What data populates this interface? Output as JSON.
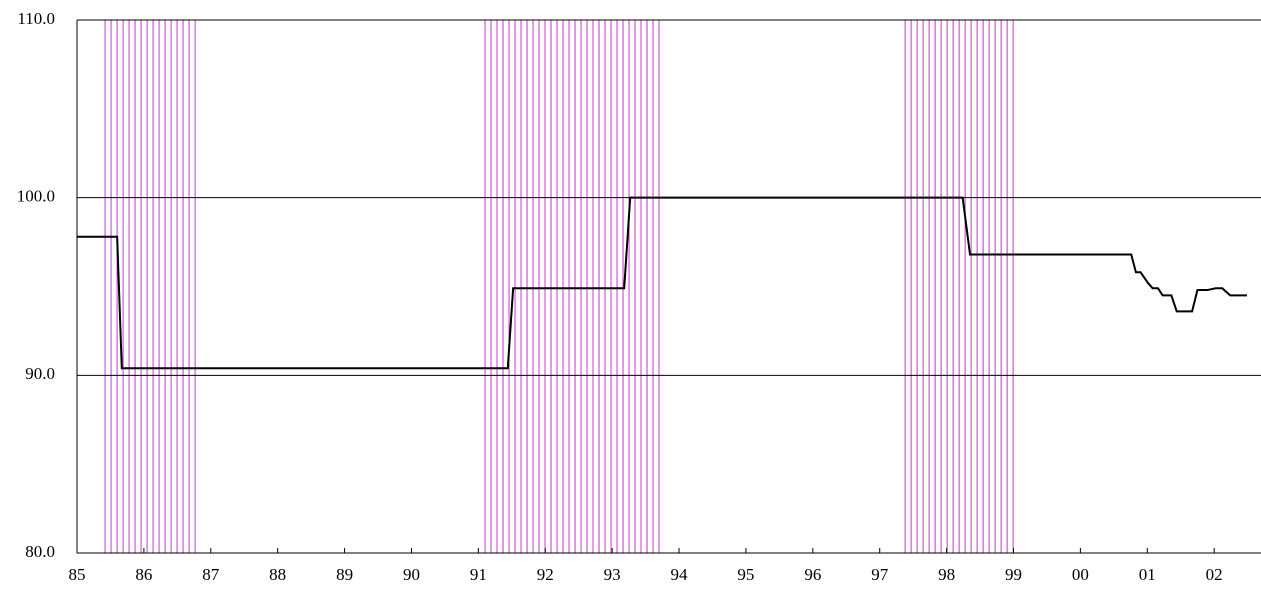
{
  "chart_data": {
    "type": "line",
    "x": [
      1985.0,
      1985.6,
      1985.67,
      1991.44,
      1991.52,
      1993.18,
      1993.27,
      1998.24,
      1998.35,
      2000.76,
      2000.83,
      2000.9,
      2001.01,
      2001.08,
      2001.16,
      2001.23,
      2001.36,
      2001.44,
      2001.67,
      2001.75,
      2001.9,
      2002.02,
      2002.12,
      2002.24,
      2002.49
    ],
    "series": [
      {
        "color": "#000000",
        "values": [
          97.8,
          97.8,
          90.4,
          90.4,
          94.9,
          94.9,
          100.0,
          100.0,
          96.8,
          96.8,
          95.8,
          95.8,
          95.2,
          94.9,
          94.9,
          94.5,
          94.5,
          93.6,
          93.6,
          94.8,
          94.8,
          94.9,
          94.9,
          94.5,
          94.5
        ]
      }
    ],
    "bands": [
      [
        1985.42,
        1986.84
      ],
      [
        1991.1,
        1993.76
      ],
      [
        1997.38,
        1999.0
      ]
    ],
    "band_color": "#cc33cc",
    "xlim": [
      1985,
      2002.7
    ],
    "ylim": [
      80,
      110
    ],
    "xticks": [
      {
        "value": 1985,
        "label": "85"
      },
      {
        "value": 1986,
        "label": "86"
      },
      {
        "value": 1987,
        "label": "87"
      },
      {
        "value": 1988,
        "label": "88"
      },
      {
        "value": 1989,
        "label": "89"
      },
      {
        "value": 1990,
        "label": "90"
      },
      {
        "value": 1991,
        "label": "91"
      },
      {
        "value": 1992,
        "label": "92"
      },
      {
        "value": 1993,
        "label": "93"
      },
      {
        "value": 1994,
        "label": "94"
      },
      {
        "value": 1995,
        "label": "95"
      },
      {
        "value": 1996,
        "label": "96"
      },
      {
        "value": 1997,
        "label": "97"
      },
      {
        "value": 1998,
        "label": "98"
      },
      {
        "value": 1999,
        "label": "99"
      },
      {
        "value": 2000,
        "label": "00"
      },
      {
        "value": 2001,
        "label": "01"
      },
      {
        "value": 2002,
        "label": "02"
      }
    ],
    "yticks": [
      {
        "value": 80,
        "label": "80.0"
      },
      {
        "value": 90,
        "label": "90.0"
      },
      {
        "value": 100,
        "label": "100.0"
      },
      {
        "value": 110,
        "label": "110.0"
      }
    ],
    "grid": true
  }
}
